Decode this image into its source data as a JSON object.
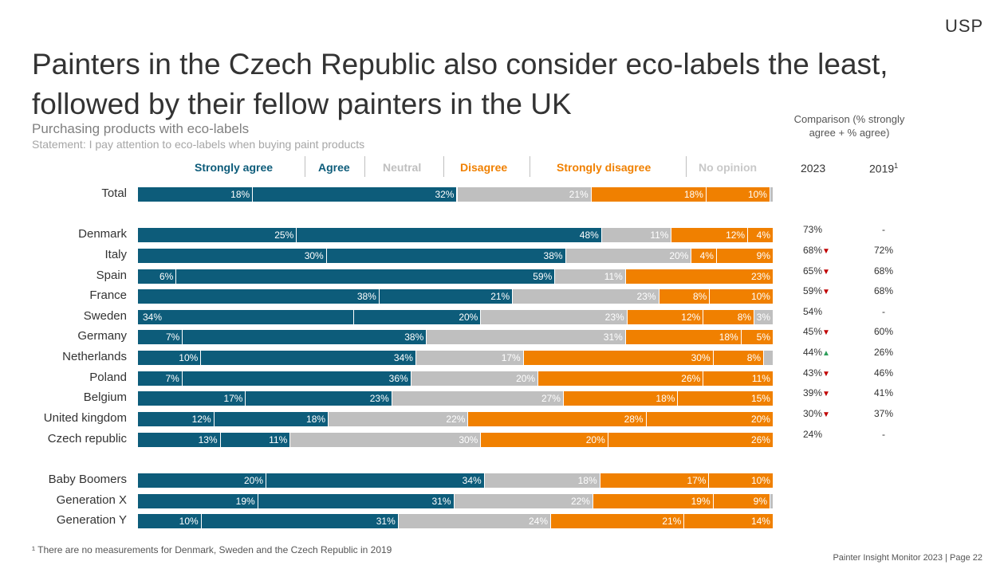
{
  "logo": "USP",
  "title": "Painters in the Czech Republic also consider eco-labels the least, followed by their fellow painters in the UK",
  "subtitle": "Purchasing products with eco-labels",
  "statement": "Statement: I pay attention to eco-labels when buying paint products",
  "comparison": {
    "title": "Comparison (% strongly agree + % agree)",
    "year_2023": "2023",
    "year_2019": "2019",
    "year_2019_sup": "1"
  },
  "colors": {
    "strongly_agree": "#0d5c7a",
    "agree": "#0d5c7a",
    "neutral": "#bfbfbf",
    "disagree": "#f08000",
    "strongly_disagree": "#f08000",
    "no_opinion": "#bfbfbf",
    "decrease": "#c00000",
    "increase": "#2e9e5b"
  },
  "chart_data": {
    "type": "bar",
    "stacked": "100%",
    "orientation": "horizontal",
    "legend": [
      "Strongly agree",
      "Agree",
      "Neutral",
      "Disagree",
      "Strongly disagree",
      "No opinion"
    ],
    "categories": [
      "Total",
      "Denmark",
      "Italy",
      "Spain",
      "France",
      "Sweden",
      "Germany",
      "Netherlands",
      "Poland",
      "Belgium",
      "United kingdom",
      "Czech republic",
      "Baby Boomers",
      "Generation X",
      "Generation Y"
    ],
    "series": [
      {
        "name": "Strongly agree",
        "values": [
          18,
          25,
          30,
          6,
          38,
          34,
          7,
          10,
          7,
          17,
          12,
          13,
          20,
          19,
          10
        ]
      },
      {
        "name": "Agree",
        "values": [
          32,
          48,
          38,
          59,
          21,
          20,
          38,
          34,
          36,
          23,
          18,
          11,
          34,
          31,
          31
        ]
      },
      {
        "name": "Neutral",
        "values": [
          21,
          11,
          20,
          11,
          23,
          23,
          31,
          17,
          20,
          27,
          22,
          30,
          18,
          22,
          24
        ]
      },
      {
        "name": "Disagree",
        "values": [
          18,
          12,
          4,
          0,
          8,
          12,
          18,
          30,
          26,
          18,
          28,
          20,
          17,
          19,
          21
        ]
      },
      {
        "name": "Strongly disagree",
        "values": [
          10,
          4,
          9,
          23,
          10,
          8,
          5,
          8,
          11,
          15,
          20,
          26,
          10,
          9,
          14
        ]
      },
      {
        "name": "No opinion",
        "values": [
          0.5,
          0,
          0,
          0,
          0,
          3,
          0,
          1.5,
          0,
          0,
          0,
          0,
          0,
          0.5,
          0
        ]
      }
    ],
    "comparison_2023": [
      "",
      "73%",
      "68%",
      "65%",
      "59%",
      "54%",
      "45%",
      "44%",
      "43%",
      "39%",
      "30%",
      "24%",
      "",
      "",
      ""
    ],
    "trend_vs_2019": [
      "",
      "",
      "down",
      "down",
      "down",
      "",
      "down",
      "up",
      "down",
      "down",
      "down",
      "",
      "",
      "",
      ""
    ],
    "comparison_2019": [
      "",
      "-",
      "72%",
      "68%",
      "68%",
      "-",
      "60%",
      "26%",
      "46%",
      "41%",
      "37%",
      "-",
      "",
      "",
      ""
    ]
  },
  "footnote": "¹ There are no measurements for Denmark, Sweden and the Czech Republic in 2019",
  "page_footer": "Painter Insight Monitor 2023 | Page 22"
}
